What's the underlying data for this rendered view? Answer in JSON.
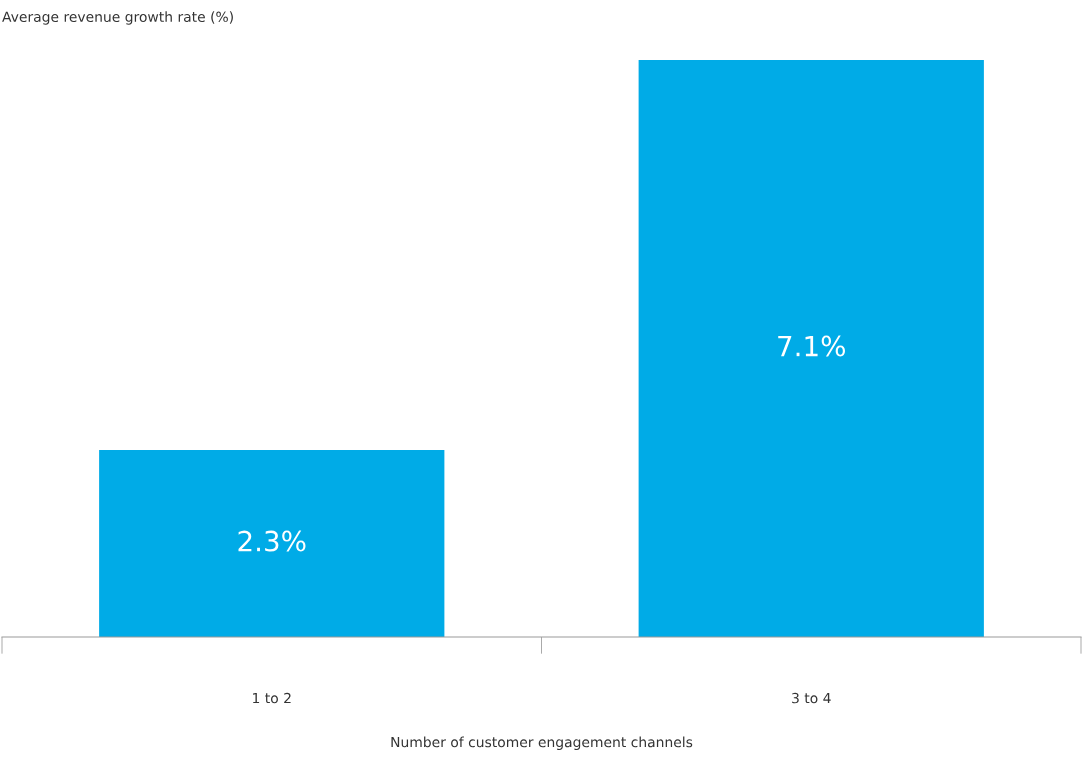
{
  "chart_data": {
    "type": "bar",
    "ylabel": "Average revenue growth rate (%)",
    "xlabel": "Number of customer engagement channels",
    "categories": [
      "1 to 2",
      "3 to 4"
    ],
    "values": [
      2.3,
      7.1
    ],
    "value_labels": [
      "2.3%",
      "7.1%"
    ],
    "color": "#00abe7",
    "grid": false,
    "legend": false,
    "tick_labels": "x"
  }
}
